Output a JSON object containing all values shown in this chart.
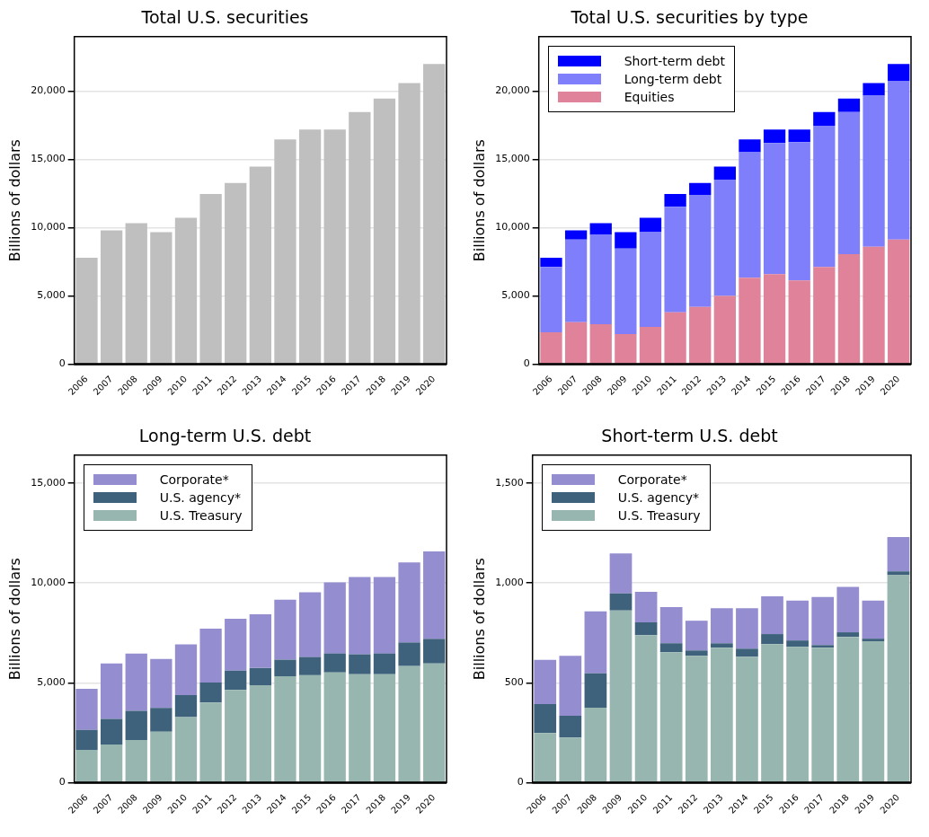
{
  "chart_data": [
    {
      "type": "bar",
      "title": "Total U.S. securities",
      "ylabel": "Billions of dollars",
      "categories": [
        "2006",
        "2007",
        "2008",
        "2009",
        "2010",
        "2011",
        "2012",
        "2013",
        "2014",
        "2015",
        "2016",
        "2017",
        "2018",
        "2019",
        "2020"
      ],
      "values": [
        7800,
        9800,
        10330,
        9670,
        10730,
        12470,
        13270,
        14470,
        16470,
        17200,
        17200,
        18470,
        19470,
        20600,
        22000
      ],
      "color": "#bfbfbf",
      "ylim": [
        0,
        24000
      ],
      "yticks": [
        {
          "value": 0,
          "label": "0"
        },
        {
          "value": 5000,
          "label": "5,000"
        },
        {
          "value": 10000,
          "label": "10,000"
        },
        {
          "value": 15000,
          "label": "15,000"
        },
        {
          "value": 20000,
          "label": "20,000"
        }
      ],
      "grid": "y"
    },
    {
      "type": "bar",
      "title": "Total U.S. securities by type",
      "ylabel": "Billions of dollars",
      "categories": [
        "2006",
        "2007",
        "2008",
        "2009",
        "2010",
        "2011",
        "2012",
        "2013",
        "2014",
        "2015",
        "2016",
        "2017",
        "2018",
        "2019",
        "2020"
      ],
      "stacked": true,
      "series": [
        {
          "name": "Equities",
          "color": "#e08299",
          "values": [
            2330,
            3070,
            2930,
            2200,
            2730,
            3800,
            4200,
            5000,
            6330,
            6600,
            6130,
            7130,
            8070,
            8600,
            9130
          ]
        },
        {
          "name": "Long-term debt",
          "color": "#7f7ffb",
          "values": [
            4800,
            6060,
            6540,
            6270,
            6940,
            7730,
            8200,
            8530,
            9200,
            9600,
            10140,
            10340,
            10400,
            11070,
            11600
          ]
        },
        {
          "name": "Short-term debt",
          "color": "#0000ff",
          "values": [
            670,
            670,
            860,
            1200,
            1060,
            940,
            870,
            940,
            940,
            1000,
            930,
            1000,
            1000,
            930,
            1270
          ]
        }
      ],
      "ylim": [
        0,
        24000
      ],
      "yticks": [
        {
          "value": 0,
          "label": "0"
        },
        {
          "value": 5000,
          "label": "5,000"
        },
        {
          "value": 10000,
          "label": "10,000"
        },
        {
          "value": 15000,
          "label": "15,000"
        },
        {
          "value": 20000,
          "label": "20,000"
        }
      ],
      "grid": "y",
      "legend": "top left"
    },
    {
      "type": "bar",
      "title": "Long-term U.S. debt",
      "ylabel": "Billions of dollars",
      "categories": [
        "2006",
        "2007",
        "2008",
        "2009",
        "2010",
        "2011",
        "2012",
        "2013",
        "2014",
        "2015",
        "2016",
        "2017",
        "2018",
        "2019",
        "2020"
      ],
      "stacked": true,
      "series": [
        {
          "name": "U.S. Treasury",
          "color": "#98b6b0",
          "values": [
            1640,
            1910,
            2140,
            2550,
            3280,
            4010,
            4640,
            4880,
            5330,
            5380,
            5520,
            5430,
            5430,
            5840,
            5970
          ]
        },
        {
          "name": "U.S. agency*",
          "color": "#3e627c",
          "values": [
            1000,
            1280,
            1460,
            1190,
            1100,
            1010,
            970,
            860,
            830,
            910,
            950,
            1000,
            1040,
            1180,
            1230
          ]
        },
        {
          "name": "Corporate*",
          "color": "#948ed0",
          "values": [
            2060,
            2780,
            2870,
            2460,
            2550,
            2690,
            2600,
            2690,
            3000,
            3240,
            3560,
            3870,
            3830,
            4010,
            4380
          ]
        }
      ],
      "ylim": [
        0,
        16400
      ],
      "yticks": [
        {
          "value": 0,
          "label": "0"
        },
        {
          "value": 5000,
          "label": "5,000"
        },
        {
          "value": 10000,
          "label": "10,000"
        },
        {
          "value": 15000,
          "label": "15,000"
        }
      ],
      "grid": "y",
      "legend": "top left"
    },
    {
      "type": "bar",
      "title": "Short-term U.S. debt",
      "ylabel": "Billions of dollars",
      "categories": [
        "2006",
        "2007",
        "2008",
        "2009",
        "2010",
        "2011",
        "2012",
        "2013",
        "2014",
        "2015",
        "2016",
        "2017",
        "2018",
        "2019",
        "2020"
      ],
      "stacked": true,
      "series": [
        {
          "name": "U.S. Treasury",
          "color": "#98b6b0",
          "values": [
            248,
            226,
            376,
            862,
            739,
            653,
            635,
            676,
            630,
            694,
            680,
            676,
            730,
            708,
            1039
          ]
        },
        {
          "name": "U.S. agency*",
          "color": "#3e627c",
          "values": [
            146,
            109,
            172,
            86,
            64,
            45,
            27,
            22,
            41,
            50,
            32,
            13,
            23,
            13,
            19
          ]
        },
        {
          "name": "Corporate*",
          "color": "#948ed0",
          "values": [
            221,
            300,
            310,
            200,
            153,
            181,
            149,
            176,
            203,
            189,
            200,
            241,
            227,
            191,
            172
          ]
        }
      ],
      "ylim": [
        0,
        1640
      ],
      "yticks": [
        0,
        500,
        {
          "value": 1000,
          "label": "1,000"
        },
        {
          "value": 1500,
          "label": "1,500"
        }
      ],
      "grid": "y",
      "legend": "top left"
    }
  ]
}
